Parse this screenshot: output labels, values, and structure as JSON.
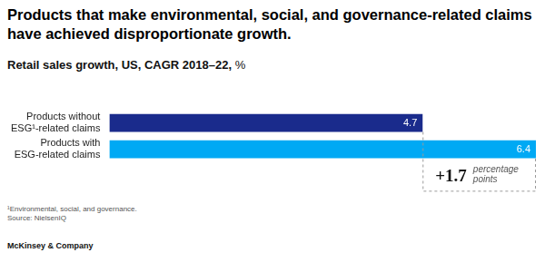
{
  "chart_data": {
    "type": "bar",
    "orientation": "horizontal",
    "title": "Products that make environmental, social, and governance-related claims have achieved disproportionate growth.",
    "subtitle": "Retail sales growth, US, CAGR 2018–22, %",
    "categories": [
      "Products without ESG¹-related claims",
      "Products with ESG-related claims"
    ],
    "values": [
      4.7,
      6.4
    ],
    "colors": [
      "#1a2b8c",
      "#00a9f4"
    ],
    "xlim": [
      0,
      6.4
    ],
    "data_labels": true,
    "tick_labels": "y",
    "grid": false,
    "annotation": {
      "value": 1.7,
      "label": "+1.7",
      "subtext": "percentage points"
    },
    "footnote": "¹Environmental, social, and governance.",
    "source": "Source: NielsenIQ",
    "brand": "McKinsey & Company"
  }
}
